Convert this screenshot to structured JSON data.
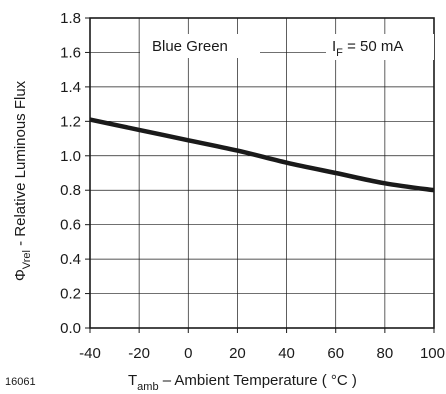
{
  "figure_id": "16061",
  "chart_data": {
    "type": "line",
    "xlabel": {
      "main": "T",
      "sub": "amb",
      "rest": " – Ambient Temperature ( °C )"
    },
    "ylabel": {
      "main": "Φ",
      "sub": "Vrel",
      "rest": " - Relative Luminous Flux"
    },
    "xlim": [
      -40,
      100
    ],
    "ylim": [
      0,
      1.8
    ],
    "xticks": [
      "-40",
      "-20",
      "0",
      "20",
      "40",
      "60",
      "80",
      "100"
    ],
    "yticks": [
      "0.0",
      "0.2",
      "0.4",
      "0.6",
      "0.8",
      "1.0",
      "1.2",
      "1.4",
      "1.6",
      "1.8"
    ],
    "grid": true,
    "annotations": {
      "series_label": "Blue Green",
      "condition": {
        "main": "I",
        "sub": "F",
        "rest": " = 50 mA"
      }
    },
    "series": [
      {
        "name": "Blue Green",
        "color": "#1a1a1a",
        "x": [
          -40,
          -20,
          0,
          20,
          40,
          60,
          80,
          100
        ],
        "y": [
          1.21,
          1.15,
          1.09,
          1.03,
          0.96,
          0.9,
          0.84,
          0.8
        ]
      }
    ]
  }
}
